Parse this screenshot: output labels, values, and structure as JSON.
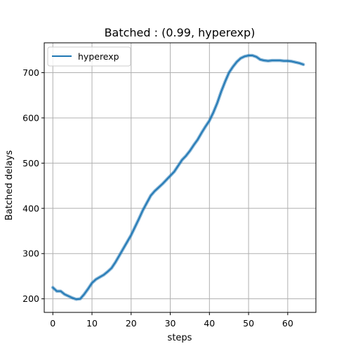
{
  "chart_data": {
    "type": "line",
    "title": "Batched : (0.99, hyperexp)",
    "xlabel": "steps",
    "ylabel": "Batched delays",
    "xlim": [
      -2.2,
      67.2
    ],
    "ylim": [
      170,
      766
    ],
    "xticks": [
      0,
      10,
      20,
      30,
      40,
      50,
      60
    ],
    "yticks": [
      200,
      300,
      400,
      500,
      600,
      700
    ],
    "grid": true,
    "legend": {
      "position": "top-left",
      "entries": [
        "hyperexp"
      ]
    },
    "series": [
      {
        "name": "hyperexp",
        "color": "#1f77b4",
        "x": [
          0,
          1,
          2,
          3,
          4,
          5,
          6,
          7,
          8,
          9,
          10,
          11,
          12,
          13,
          14,
          15,
          16,
          17,
          18,
          19,
          20,
          21,
          22,
          23,
          24,
          25,
          26,
          27,
          28,
          29,
          30,
          31,
          32,
          33,
          34,
          35,
          36,
          37,
          38,
          39,
          40,
          41,
          42,
          43,
          44,
          45,
          46,
          47,
          48,
          49,
          50,
          51,
          52,
          53,
          54,
          55,
          56,
          57,
          58,
          59,
          60,
          61,
          62,
          63,
          64
        ],
        "y": [
          225,
          217,
          217,
          210,
          206,
          202,
          199,
          200,
          210,
          222,
          235,
          243,
          248,
          253,
          260,
          268,
          281,
          296,
          311,
          326,
          341,
          359,
          377,
          396,
          412,
          428,
          438,
          446,
          454,
          463,
          472,
          481,
          494,
          507,
          516,
          527,
          540,
          552,
          567,
          581,
          594,
          612,
          633,
          658,
          680,
          700,
          713,
          724,
          732,
          736,
          738,
          738,
          735,
          729,
          727,
          726,
          727,
          727,
          727,
          726,
          726,
          725,
          723,
          721,
          718
        ]
      }
    ]
  }
}
